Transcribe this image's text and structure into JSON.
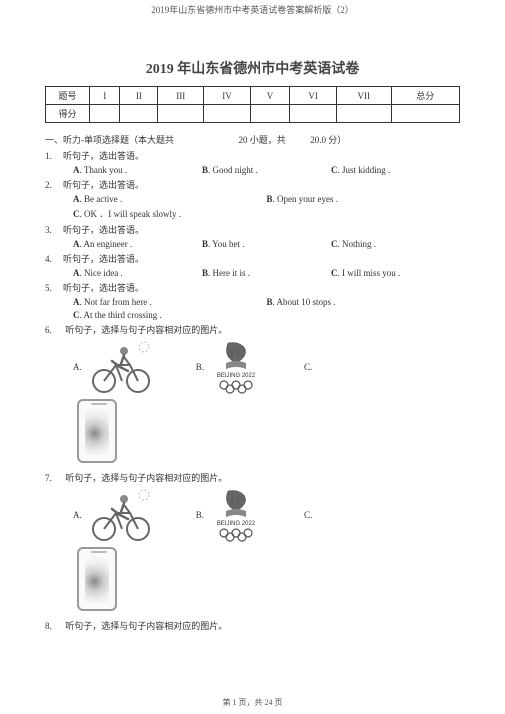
{
  "header": "2019年山东省德州市中考英语试卷答案解析版（2）",
  "title": "2019 年山东省德州市中考英语试卷",
  "scoreTable": {
    "row1": [
      "题号",
      "I",
      "II",
      "III",
      "IV",
      "V",
      "VI",
      "VII",
      "总分"
    ],
    "row2Label": "得分"
  },
  "section1": "一、听力-单项选择题（本大题共",
  "section1b": "20 小题，共",
  "section1c": "20.0 分）",
  "questions": [
    {
      "num": "1.",
      "text": "听句子，选出答语。",
      "opts": [
        {
          "l": "A",
          "t": ". Thank you ."
        },
        {
          "l": "B",
          "t": ". Good night ."
        },
        {
          "l": "C",
          "t": ". Just kidding ."
        }
      ]
    },
    {
      "num": "2.",
      "text": "听句子，选出答语。",
      "opts": [
        {
          "l": "A",
          "t": ". Be active ."
        },
        {
          "l": "B",
          "t": ". Open your eyes ."
        }
      ],
      "opts2": [
        {
          "l": "C",
          "t": ". OK ．I will speak slowly ."
        }
      ]
    },
    {
      "num": "3.",
      "text": "听句子，选出答语。",
      "opts": [
        {
          "l": "A",
          "t": ". An engineer ."
        },
        {
          "l": "B",
          "t": ". You bet ."
        },
        {
          "l": "C",
          "t": ". Nothing ."
        }
      ]
    },
    {
      "num": "4.",
      "text": "听句子，选出答语。",
      "opts": [
        {
          "l": "A",
          "t": ". Nice idea ."
        },
        {
          "l": "B",
          "t": ". Here it is ."
        },
        {
          "l": "C",
          "t": ". I will miss you ."
        }
      ]
    },
    {
      "num": "5.",
      "text": "听句子，选出答语。",
      "opts": [
        {
          "l": "A",
          "t": ". Not far from here ."
        },
        {
          "l": "B",
          "t": ". About 10 stops ."
        }
      ],
      "opts2": [
        {
          "l": "C",
          "t": ". At the third crossing ."
        }
      ]
    }
  ],
  "q6": {
    "num": "6.",
    "text": "听句子，选择与句子内容相对应的图片。"
  },
  "q7": {
    "num": "7.",
    "text": "听句子，选择与句子内容相对应的图片。"
  },
  "q8": {
    "num": "8.",
    "text": "听句子，选择与句子内容相对应的图片。"
  },
  "imgLabels": {
    "a": "A.",
    "b": "B.",
    "c": "C."
  },
  "olympicText": "BEIJING 2022",
  "footer": "第 1 页，共 24 页"
}
